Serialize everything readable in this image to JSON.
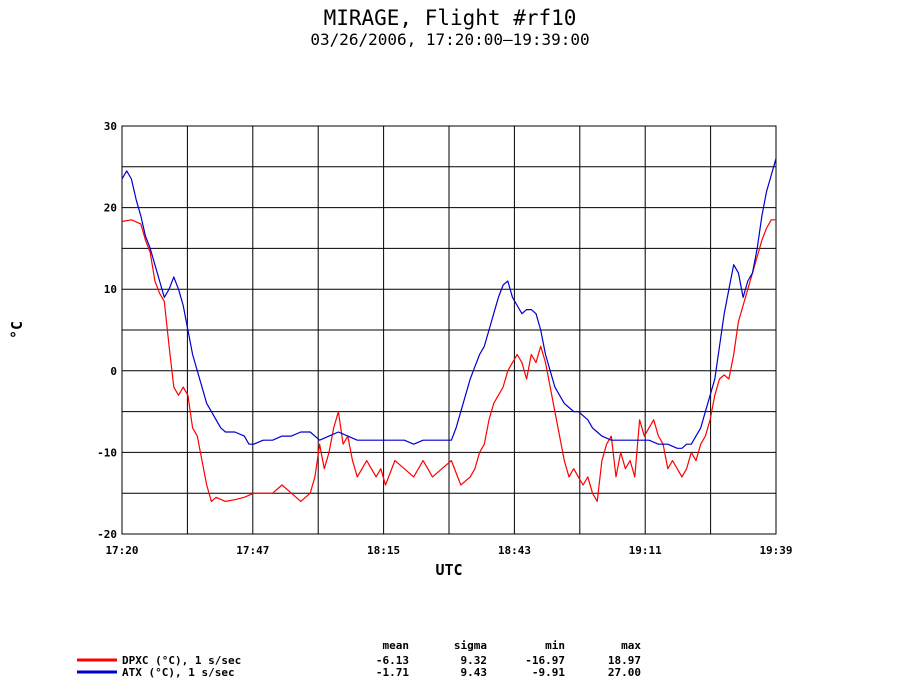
{
  "chart_data": {
    "type": "line",
    "title": "MIRAGE, Flight #rf10",
    "subtitle": "03/26/2006, 17:20:00–19:39:00",
    "xlabel": "UTC",
    "ylabel": "°C",
    "x_ticks": [
      "17:20",
      "17:47",
      "18:15",
      "18:43",
      "19:11",
      "19:39"
    ],
    "x_range_minutes": [
      0,
      139
    ],
    "ylim": [
      -20,
      30
    ],
    "y_ticks": [
      -20,
      -10,
      0,
      10,
      20,
      30
    ],
    "grid": true,
    "series": [
      {
        "name": "DPXC (°C), 1 s/sec",
        "color": "#ff0000",
        "points": [
          [
            0,
            18.3
          ],
          [
            2,
            18.5
          ],
          [
            4,
            18
          ],
          [
            5,
            16
          ],
          [
            6,
            14.5
          ],
          [
            7,
            11
          ],
          [
            8,
            9.5
          ],
          [
            9,
            8.5
          ],
          [
            10,
            3
          ],
          [
            11,
            -2
          ],
          [
            12,
            -3
          ],
          [
            13,
            -2
          ],
          [
            14,
            -3
          ],
          [
            15,
            -7
          ],
          [
            16,
            -8
          ],
          [
            17,
            -11
          ],
          [
            18,
            -14
          ],
          [
            19,
            -16
          ],
          [
            20,
            -15.5
          ],
          [
            22,
            -16
          ],
          [
            24,
            -15.8
          ],
          [
            26,
            -15.5
          ],
          [
            28,
            -15
          ],
          [
            30,
            -15
          ],
          [
            32,
            -15
          ],
          [
            34,
            -14
          ],
          [
            36,
            -15
          ],
          [
            38,
            -16
          ],
          [
            40,
            -15
          ],
          [
            41,
            -13
          ],
          [
            42,
            -9
          ],
          [
            43,
            -12
          ],
          [
            44,
            -10
          ],
          [
            45,
            -7
          ],
          [
            46,
            -5
          ],
          [
            47,
            -9
          ],
          [
            48,
            -8
          ],
          [
            49,
            -11
          ],
          [
            50,
            -13
          ],
          [
            52,
            -11
          ],
          [
            54,
            -13
          ],
          [
            55,
            -12
          ],
          [
            56,
            -14
          ],
          [
            58,
            -11
          ],
          [
            60,
            -12
          ],
          [
            62,
            -13
          ],
          [
            64,
            -11
          ],
          [
            66,
            -13
          ],
          [
            68,
            -12
          ],
          [
            70,
            -11
          ],
          [
            72,
            -14
          ],
          [
            74,
            -13
          ],
          [
            75,
            -12
          ],
          [
            76,
            -10
          ],
          [
            77,
            -9
          ],
          [
            78,
            -6
          ],
          [
            79,
            -4
          ],
          [
            80,
            -3
          ],
          [
            81,
            -2
          ],
          [
            82,
            0
          ],
          [
            83,
            1
          ],
          [
            84,
            2
          ],
          [
            85,
            1
          ],
          [
            86,
            -1
          ],
          [
            87,
            2
          ],
          [
            88,
            1
          ],
          [
            89,
            3
          ],
          [
            90,
            1
          ],
          [
            91,
            -2
          ],
          [
            92,
            -5
          ],
          [
            93,
            -8
          ],
          [
            94,
            -11
          ],
          [
            95,
            -13
          ],
          [
            96,
            -12
          ],
          [
            97,
            -13
          ],
          [
            98,
            -14
          ],
          [
            99,
            -13
          ],
          [
            100,
            -15
          ],
          [
            101,
            -16
          ],
          [
            102,
            -11
          ],
          [
            103,
            -9
          ],
          [
            104,
            -8
          ],
          [
            105,
            -13
          ],
          [
            106,
            -10
          ],
          [
            107,
            -12
          ],
          [
            108,
            -11
          ],
          [
            109,
            -13
          ],
          [
            110,
            -6
          ],
          [
            111,
            -8
          ],
          [
            112,
            -7
          ],
          [
            113,
            -6
          ],
          [
            114,
            -8
          ],
          [
            115,
            -9
          ],
          [
            116,
            -12
          ],
          [
            117,
            -11
          ],
          [
            118,
            -12
          ],
          [
            119,
            -13
          ],
          [
            120,
            -12
          ],
          [
            121,
            -10
          ],
          [
            122,
            -11
          ],
          [
            123,
            -9
          ],
          [
            124,
            -8
          ],
          [
            125,
            -6
          ],
          [
            126,
            -3
          ],
          [
            127,
            -1
          ],
          [
            128,
            -0.5
          ],
          [
            129,
            -1
          ],
          [
            130,
            2
          ],
          [
            131,
            6
          ],
          [
            132,
            8
          ],
          [
            133,
            10
          ],
          [
            134,
            12
          ],
          [
            135,
            14
          ],
          [
            136,
            16
          ],
          [
            137,
            17.5
          ],
          [
            138,
            18.5
          ],
          [
            139,
            18.5
          ]
        ]
      },
      {
        "name": "ATX (°C), 1 s/sec",
        "color": "#0000cc",
        "points": [
          [
            0,
            23.5
          ],
          [
            1,
            24.5
          ],
          [
            2,
            23.5
          ],
          [
            3,
            21
          ],
          [
            4,
            19
          ],
          [
            5,
            16.5
          ],
          [
            6,
            15
          ],
          [
            7,
            13
          ],
          [
            8,
            11
          ],
          [
            9,
            9
          ],
          [
            10,
            10
          ],
          [
            11,
            11.5
          ],
          [
            12,
            10
          ],
          [
            13,
            8
          ],
          [
            14,
            5
          ],
          [
            15,
            2
          ],
          [
            16,
            0
          ],
          [
            17,
            -2
          ],
          [
            18,
            -4
          ],
          [
            19,
            -5
          ],
          [
            20,
            -6
          ],
          [
            21,
            -7
          ],
          [
            22,
            -7.5
          ],
          [
            24,
            -7.5
          ],
          [
            26,
            -8
          ],
          [
            27,
            -9
          ],
          [
            28,
            -9
          ],
          [
            30,
            -8.5
          ],
          [
            32,
            -8.5
          ],
          [
            34,
            -8
          ],
          [
            36,
            -8
          ],
          [
            38,
            -7.5
          ],
          [
            40,
            -7.5
          ],
          [
            41,
            -8
          ],
          [
            42,
            -8.5
          ],
          [
            44,
            -8
          ],
          [
            46,
            -7.5
          ],
          [
            48,
            -8
          ],
          [
            50,
            -8.5
          ],
          [
            52,
            -8.5
          ],
          [
            54,
            -8.5
          ],
          [
            56,
            -8.5
          ],
          [
            58,
            -8.5
          ],
          [
            60,
            -8.5
          ],
          [
            62,
            -9
          ],
          [
            64,
            -8.5
          ],
          [
            66,
            -8.5
          ],
          [
            68,
            -8.5
          ],
          [
            70,
            -8.5
          ],
          [
            71,
            -7
          ],
          [
            72,
            -5
          ],
          [
            73,
            -3
          ],
          [
            74,
            -1
          ],
          [
            75,
            0.5
          ],
          [
            76,
            2
          ],
          [
            77,
            3
          ],
          [
            78,
            5
          ],
          [
            79,
            7
          ],
          [
            80,
            9
          ],
          [
            81,
            10.5
          ],
          [
            82,
            11
          ],
          [
            83,
            9
          ],
          [
            84,
            8
          ],
          [
            85,
            7
          ],
          [
            86,
            7.5
          ],
          [
            87,
            7.5
          ],
          [
            88,
            7
          ],
          [
            89,
            5
          ],
          [
            90,
            2
          ],
          [
            91,
            0
          ],
          [
            92,
            -2
          ],
          [
            93,
            -3
          ],
          [
            94,
            -4
          ],
          [
            95,
            -4.5
          ],
          [
            96,
            -5
          ],
          [
            97,
            -5
          ],
          [
            98,
            -5.5
          ],
          [
            99,
            -6
          ],
          [
            100,
            -7
          ],
          [
            101,
            -7.5
          ],
          [
            102,
            -8
          ],
          [
            104,
            -8.5
          ],
          [
            106,
            -8.5
          ],
          [
            108,
            -8.5
          ],
          [
            110,
            -8.5
          ],
          [
            112,
            -8.5
          ],
          [
            114,
            -9
          ],
          [
            116,
            -9
          ],
          [
            118,
            -9.5
          ],
          [
            119,
            -9.5
          ],
          [
            120,
            -9
          ],
          [
            121,
            -9
          ],
          [
            122,
            -8
          ],
          [
            123,
            -7
          ],
          [
            124,
            -5
          ],
          [
            125,
            -3
          ],
          [
            126,
            -1
          ],
          [
            127,
            3
          ],
          [
            128,
            7
          ],
          [
            129,
            10
          ],
          [
            130,
            13
          ],
          [
            131,
            12
          ],
          [
            132,
            9
          ],
          [
            133,
            11
          ],
          [
            134,
            12
          ],
          [
            135,
            15
          ],
          [
            136,
            19
          ],
          [
            137,
            22
          ],
          [
            138,
            24
          ],
          [
            139,
            26
          ]
        ]
      }
    ]
  },
  "legend": [
    {
      "label": "DPXC (°C), 1 s/sec",
      "color": "#ff0000",
      "mean": "-6.13",
      "sigma": "9.32",
      "min": "-16.97",
      "max": "18.97"
    },
    {
      "label": "ATX (°C), 1 s/sec",
      "color": "#0000cc",
      "mean": "-1.71",
      "sigma": "9.43",
      "min": "-9.91",
      "max": "27.00"
    }
  ],
  "stats_headers": {
    "mean": "mean",
    "sigma": "sigma",
    "min": "min",
    "max": "max"
  }
}
